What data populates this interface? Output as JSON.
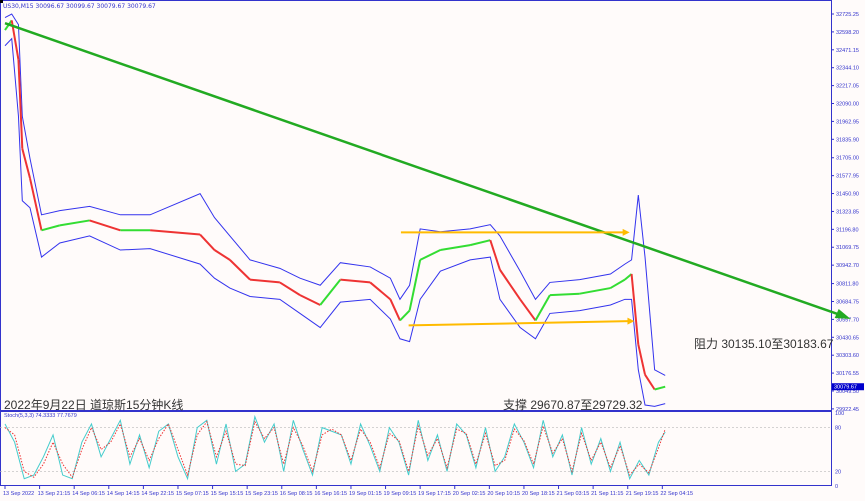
{
  "header": {
    "symbol_info": "US30,M15  30096.67 30099.67 30079.67 30079.67"
  },
  "annotations": {
    "title": "2022年9月22日 道琼斯15分钟K线",
    "resistance": "阻力 30135.10至30183.67",
    "support": "支撑 29670.87至29729.32"
  },
  "colors": {
    "bull": "#33dd33",
    "bear": "#ee3333",
    "bands": "#3333ee",
    "trendline": "#22aa22",
    "arrows": "#ffbb00",
    "stoch_main": "#44cccc",
    "stoch_signal": "#ee3333",
    "axis": "#3333cc",
    "background": "#fffbfa"
  },
  "chart_data": [
    {
      "type": "line",
      "panel": "price",
      "ylim": [
        29922.45,
        32725.25
      ],
      "y_ticks": [
        "32725.25",
        "32598.20",
        "32471.15",
        "32344.10",
        "32217.05",
        "32090.00",
        "31962.95",
        "31835.90",
        "31705.00",
        "31577.95",
        "31450.90",
        "31323.85",
        "31196.80",
        "31069.75",
        "30942.70",
        "30811.80",
        "30684.75",
        "30557.70",
        "30430.65",
        "30303.60",
        "30176.55",
        "30049.50",
        "29922.45"
      ],
      "current_price": "30079.67",
      "x_unit": "bar (15 min)",
      "x_ticks": [
        "13 Sep 2022",
        "13 Sep 21:15",
        "14 Sep 06:15",
        "14 Sep 14:15",
        "14 Sep 22:15",
        "15 Sep 07:15",
        "15 Sep 15:15",
        "15 Sep 23:15",
        "16 Sep 08:15",
        "16 Sep 16:15",
        "19 Sep 01:15",
        "19 Sep 09:15",
        "19 Sep 17:15",
        "20 Sep 02:15",
        "20 Sep 10:15",
        "20 Sep 18:15",
        "21 Sep 03:15",
        "21 Sep 11:15",
        "21 Sep 19:15",
        "22 Sep 04:15"
      ],
      "x_tick_bars": [
        0,
        36,
        72,
        108,
        144,
        180,
        216,
        252,
        288,
        324,
        360,
        396,
        432,
        468,
        504,
        540,
        576,
        612,
        648,
        684
      ],
      "x": [
        0,
        7,
        14,
        18,
        26,
        38,
        57,
        88,
        120,
        151,
        203,
        218,
        234,
        255,
        286,
        307,
        328,
        349,
        380,
        401,
        411,
        421,
        432,
        453,
        484,
        505,
        515,
        536,
        552,
        567,
        598,
        630,
        645,
        652,
        659,
        666,
        676,
        687
      ],
      "close": [
        32611,
        32680,
        32400,
        31770,
        31560,
        31190,
        31225,
        31260,
        31190,
        31190,
        31160,
        31050,
        30980,
        30840,
        30820,
        30730,
        30660,
        30840,
        30820,
        30700,
        30550,
        30620,
        30980,
        31050,
        31085,
        31120,
        30910,
        30700,
        30550,
        30730,
        30740,
        30780,
        30840,
        30880,
        30380,
        30165,
        30060,
        30080
      ],
      "upper_band": [
        32700,
        32725,
        32650,
        32000,
        31700,
        31300,
        31330,
        31360,
        31300,
        31300,
        31450,
        31280,
        31150,
        30980,
        30920,
        30850,
        30800,
        30960,
        30930,
        30850,
        30700,
        30800,
        31200,
        31180,
        31200,
        31230,
        31150,
        30900,
        30700,
        30820,
        30840,
        30880,
        30950,
        30980,
        31440,
        31000,
        30200,
        30160
      ],
      "lower_band": [
        32500,
        32550,
        32000,
        31400,
        31350,
        31000,
        31100,
        31150,
        31050,
        31060,
        30950,
        30850,
        30780,
        30720,
        30700,
        30600,
        30500,
        30680,
        30700,
        30560,
        30420,
        30400,
        30700,
        30900,
        30980,
        31000,
        30700,
        30500,
        30420,
        30600,
        30620,
        30660,
        30700,
        30700,
        30200,
        29950,
        29940,
        29960
      ],
      "trendline": {
        "from": [
          0,
          32660
        ],
        "to": [
          880,
          30560
        ]
      },
      "arrows": [
        {
          "from": [
            412,
            31175
          ],
          "to": [
            650,
            31175
          ]
        },
        {
          "from": [
            420,
            30515
          ],
          "to": [
            655,
            30545
          ]
        }
      ]
    },
    {
      "type": "line",
      "panel": "stochastic",
      "title": "Stoch(5,3,3) 74.3333 77.7679",
      "ylim": [
        0,
        100
      ],
      "y_ticks": [
        "100",
        "80",
        "20",
        "0"
      ],
      "levels": [
        80,
        20
      ],
      "x": [
        0,
        10,
        20,
        30,
        40,
        50,
        60,
        70,
        80,
        90,
        100,
        110,
        120,
        130,
        140,
        150,
        160,
        170,
        180,
        190,
        200,
        210,
        220,
        230,
        240,
        250,
        260,
        270,
        280,
        290,
        300,
        310,
        320,
        330,
        340,
        350,
        360,
        370,
        380,
        390,
        400,
        410,
        420,
        430,
        440,
        450,
        460,
        470,
        480,
        490,
        500,
        510,
        520,
        530,
        540,
        550,
        560,
        570,
        580,
        590,
        600,
        610,
        620,
        630,
        640,
        650,
        660,
        670,
        680,
        687
      ],
      "main": [
        85,
        60,
        10,
        15,
        40,
        70,
        15,
        10,
        60,
        85,
        40,
        65,
        90,
        30,
        70,
        25,
        75,
        85,
        40,
        10,
        80,
        90,
        30,
        85,
        20,
        30,
        95,
        60,
        85,
        20,
        90,
        50,
        15,
        80,
        75,
        70,
        30,
        85,
        55,
        20,
        80,
        60,
        15,
        90,
        35,
        70,
        20,
        85,
        70,
        25,
        80,
        20,
        40,
        85,
        60,
        25,
        90,
        40,
        70,
        15,
        80,
        30,
        65,
        20,
        60,
        10,
        35,
        15,
        60,
        74
      ],
      "signal": [
        80,
        70,
        20,
        12,
        30,
        60,
        30,
        12,
        50,
        80,
        50,
        60,
        85,
        40,
        65,
        35,
        65,
        85,
        50,
        15,
        70,
        88,
        40,
        75,
        30,
        28,
        88,
        65,
        80,
        30,
        80,
        55,
        20,
        70,
        78,
        70,
        35,
        78,
        60,
        25,
        72,
        62,
        20,
        82,
        42,
        65,
        25,
        78,
        72,
        30,
        72,
        28,
        35,
        78,
        62,
        30,
        82,
        45,
        65,
        20,
        72,
        35,
        60,
        25,
        55,
        15,
        30,
        18,
        52,
        78
      ]
    }
  ]
}
